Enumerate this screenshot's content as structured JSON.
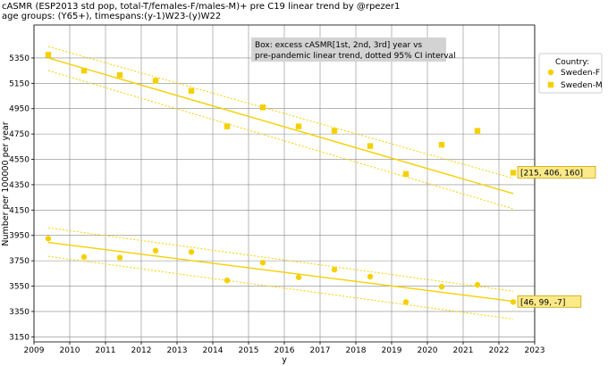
{
  "chart_data": {
    "type": "scatter",
    "title": "cASMR (ESP2013 std pop, total-T/females-F/males-M)+ pre C19 linear trend by @rpezer1",
    "subtitle": "age groups: (Y65+), timespans:(y-1)W23-(y)W22",
    "xlabel": "y",
    "ylabel": "Number per 100000 per year",
    "xlim": [
      2009,
      2023
    ],
    "ylim": [
      3110,
      5610
    ],
    "x_ticks": [
      2009,
      2010,
      2011,
      2012,
      2013,
      2014,
      2015,
      2016,
      2017,
      2018,
      2019,
      2020,
      2021,
      2022,
      2023
    ],
    "y_ticks": [
      3150,
      3350,
      3550,
      3750,
      3950,
      4150,
      4350,
      4550,
      4750,
      4950,
      5150,
      5350
    ],
    "grid": true,
    "legend": {
      "title": "Country:",
      "position": "right",
      "entries": [
        "Sweden-F",
        "Sweden-M"
      ]
    },
    "annotation_box": "Box: excess cASMR[1st, 2nd, 3rd] year vs\npre-pandemic linear trend, dotted 95% CI interval",
    "series": [
      {
        "name": "Sweden-F",
        "marker": "circle",
        "color": "#f5d000",
        "x": [
          2009.4,
          2010.4,
          2011.4,
          2012.4,
          2013.4,
          2014.4,
          2015.4,
          2016.4,
          2017.4,
          2018.4,
          2019.4,
          2020.4,
          2021.4,
          2022.4
        ],
        "y": [
          3925,
          3780,
          3775,
          3830,
          3820,
          3595,
          3735,
          3620,
          3680,
          3625,
          3425,
          3545,
          3560,
          3425
        ],
        "trend": {
          "x": [
            2009.4,
            2022.4
          ],
          "y": [
            3895,
            3430
          ]
        },
        "ci_upper": {
          "x": [
            2009.4,
            2022.4
          ],
          "y": [
            4010,
            3510
          ]
        },
        "ci_lower": {
          "x": [
            2009.4,
            2022.4
          ],
          "y": [
            3785,
            3290
          ]
        },
        "excess_label": "[46, 99, -7]"
      },
      {
        "name": "Sweden-M",
        "marker": "square",
        "color": "#f5d000",
        "x": [
          2009.4,
          2010.4,
          2011.4,
          2012.4,
          2013.4,
          2014.4,
          2015.4,
          2016.4,
          2017.4,
          2018.4,
          2019.4,
          2020.4,
          2021.4,
          2022.4
        ],
        "y": [
          5375,
          5250,
          5215,
          5170,
          5090,
          4810,
          4960,
          4810,
          4775,
          4655,
          4435,
          4665,
          4775,
          4445
        ],
        "trend": {
          "x": [
            2009.4,
            2022.4
          ],
          "y": [
            5350,
            4280
          ]
        },
        "ci_upper": {
          "x": [
            2009.4,
            2022.4
          ],
          "y": [
            5440,
            4400
          ]
        },
        "ci_lower": {
          "x": [
            2009.4,
            2022.4
          ],
          "y": [
            5250,
            4160
          ]
        },
        "excess_label": "[215, 406, 160]"
      }
    ]
  }
}
